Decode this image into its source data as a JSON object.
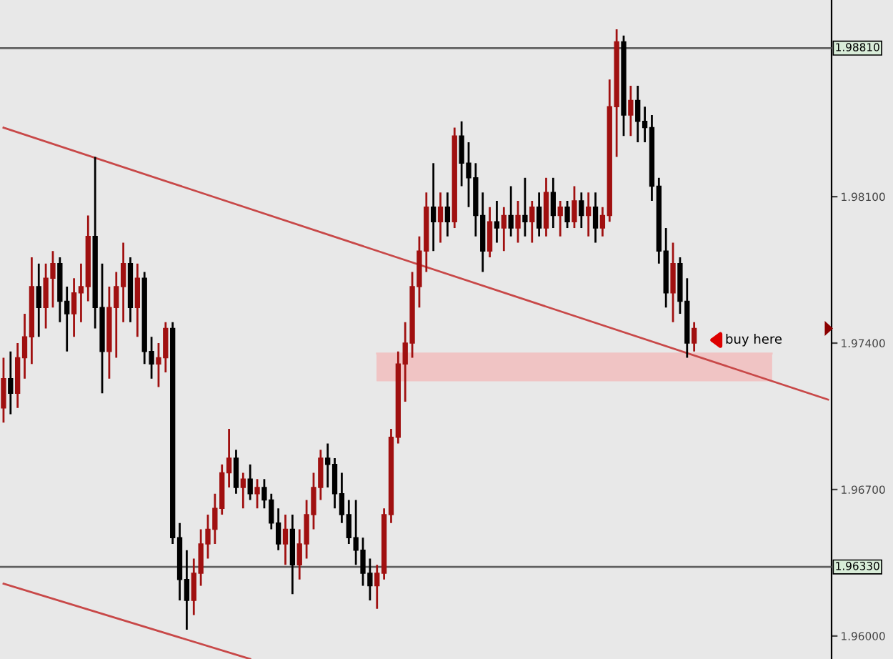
{
  "chart_data": {
    "type": "candlestick",
    "categories": [
      null,
      null,
      null,
      null,
      null,
      null,
      null,
      null,
      null,
      null,
      null,
      null,
      null,
      null,
      null,
      null,
      null,
      null,
      null,
      null,
      null,
      null,
      null,
      null,
      null,
      null,
      null,
      null,
      null,
      null,
      null,
      null,
      null,
      null,
      null,
      null,
      null,
      null,
      null,
      null,
      null,
      null,
      null,
      null,
      null,
      null,
      null,
      null,
      null,
      null,
      null,
      null,
      null,
      null,
      null,
      null,
      null,
      null,
      null,
      null,
      null,
      null,
      null,
      null,
      null,
      null,
      null,
      null,
      null,
      null,
      null,
      null,
      null,
      null,
      null,
      null,
      null,
      null,
      null,
      null,
      null,
      null,
      null,
      null,
      null,
      null,
      null,
      null,
      null,
      null,
      null,
      null,
      null,
      null,
      null,
      null,
      null,
      null,
      null,
      null,
      null,
      null,
      null,
      null,
      null,
      null,
      null,
      null,
      null,
      null,
      null,
      null,
      null,
      null,
      null,
      null,
      null,
      null
    ],
    "ohlc": [
      [
        1.9709,
        1.9733,
        1.9702,
        1.9723
      ],
      [
        1.9723,
        1.9736,
        1.9706,
        1.9716
      ],
      [
        1.9716,
        1.974,
        1.9709,
        1.9733
      ],
      [
        1.9733,
        1.9754,
        1.9723,
        1.9743
      ],
      [
        1.9743,
        1.9781,
        1.973,
        1.9767
      ],
      [
        1.9767,
        1.9778,
        1.9743,
        1.9757
      ],
      [
        1.9757,
        1.9778,
        1.9747,
        1.9771
      ],
      [
        1.9771,
        1.9784,
        1.9757,
        1.9778
      ],
      [
        1.9778,
        1.9781,
        1.975,
        1.976
      ],
      [
        1.976,
        1.9767,
        1.9736,
        1.9754
      ],
      [
        1.9754,
        1.9771,
        1.9743,
        1.9764
      ],
      [
        1.9764,
        1.9778,
        1.975,
        1.9767
      ],
      [
        1.9767,
        1.9801,
        1.976,
        1.9791
      ],
      [
        1.9791,
        1.9829,
        1.9747,
        1.9757
      ],
      [
        1.9757,
        1.9778,
        1.9716,
        1.9736
      ],
      [
        1.9736,
        1.9767,
        1.9723,
        1.9757
      ],
      [
        1.9757,
        1.9774,
        1.9733,
        1.9767
      ],
      [
        1.9767,
        1.9788,
        1.975,
        1.9778
      ],
      [
        1.9778,
        1.9781,
        1.975,
        1.9757
      ],
      [
        1.9757,
        1.9778,
        1.9743,
        1.9771
      ],
      [
        1.9771,
        1.9774,
        1.973,
        1.9736
      ],
      [
        1.9736,
        1.9743,
        1.9723,
        1.973
      ],
      [
        1.973,
        1.974,
        1.9719,
        1.9733
      ],
      [
        1.9733,
        1.975,
        1.9726,
        1.9747
      ],
      [
        1.9747,
        1.975,
        1.9644,
        1.9647
      ],
      [
        1.9647,
        1.9654,
        1.9617,
        1.9627
      ],
      [
        1.9627,
        1.9641,
        1.9603,
        1.9617
      ],
      [
        1.9617,
        1.9637,
        1.961,
        1.963
      ],
      [
        1.963,
        1.9651,
        1.9624,
        1.9644
      ],
      [
        1.9644,
        1.9658,
        1.9637,
        1.9651
      ],
      [
        1.9651,
        1.9668,
        1.9644,
        1.9661
      ],
      [
        1.9661,
        1.9682,
        1.9658,
        1.9678
      ],
      [
        1.9678,
        1.9699,
        1.9671,
        1.9685
      ],
      [
        1.9685,
        1.9689,
        1.9668,
        1.9671
      ],
      [
        1.9671,
        1.9678,
        1.9661,
        1.9675
      ],
      [
        1.9675,
        1.9682,
        1.9665,
        1.9668
      ],
      [
        1.9668,
        1.9675,
        1.9661,
        1.9671
      ],
      [
        1.9671,
        1.9675,
        1.9661,
        1.9665
      ],
      [
        1.9665,
        1.9668,
        1.9651,
        1.9654
      ],
      [
        1.9654,
        1.9661,
        1.9641,
        1.9644
      ],
      [
        1.9644,
        1.9658,
        1.9634,
        1.9651
      ],
      [
        1.9651,
        1.9658,
        1.962,
        1.9634
      ],
      [
        1.9634,
        1.9651,
        1.9627,
        1.9644
      ],
      [
        1.9644,
        1.9665,
        1.9637,
        1.9658
      ],
      [
        1.9658,
        1.9678,
        1.9651,
        1.9671
      ],
      [
        1.9671,
        1.9689,
        1.9665,
        1.9685
      ],
      [
        1.9685,
        1.9692,
        1.9671,
        1.9682
      ],
      [
        1.9682,
        1.9685,
        1.9661,
        1.9668
      ],
      [
        1.9668,
        1.9678,
        1.9654,
        1.9658
      ],
      [
        1.9658,
        1.9665,
        1.9644,
        1.9647
      ],
      [
        1.9647,
        1.9665,
        1.9634,
        1.9641
      ],
      [
        1.9641,
        1.9647,
        1.9624,
        1.963
      ],
      [
        1.963,
        1.9637,
        1.9617,
        1.9624
      ],
      [
        1.9624,
        1.9634,
        1.9613,
        1.963
      ],
      [
        1.963,
        1.9661,
        1.9627,
        1.9658
      ],
      [
        1.9658,
        1.9699,
        1.9654,
        1.9695
      ],
      [
        1.9695,
        1.9736,
        1.9692,
        1.973
      ],
      [
        1.973,
        1.975,
        1.9712,
        1.974
      ],
      [
        1.974,
        1.9774,
        1.9733,
        1.9767
      ],
      [
        1.9767,
        1.9791,
        1.9757,
        1.9784
      ],
      [
        1.9784,
        1.9812,
        1.9774,
        1.9805
      ],
      [
        1.9805,
        1.9826,
        1.9784,
        1.9798
      ],
      [
        1.9798,
        1.9812,
        1.9788,
        1.9805
      ],
      [
        1.9805,
        1.9812,
        1.9791,
        1.9798
      ],
      [
        1.9798,
        1.9843,
        1.9795,
        1.9839
      ],
      [
        1.9839,
        1.9846,
        1.9815,
        1.9826
      ],
      [
        1.9826,
        1.9836,
        1.9805,
        1.9819
      ],
      [
        1.9819,
        1.9826,
        1.9791,
        1.9801
      ],
      [
        1.9801,
        1.9812,
        1.9774,
        1.9784
      ],
      [
        1.9784,
        1.9805,
        1.9781,
        1.9798
      ],
      [
        1.9798,
        1.9808,
        1.9788,
        1.9795
      ],
      [
        1.9795,
        1.9805,
        1.9784,
        1.9801
      ],
      [
        1.9801,
        1.9815,
        1.9791,
        1.9795
      ],
      [
        1.9795,
        1.9808,
        1.9788,
        1.9801
      ],
      [
        1.9801,
        1.9819,
        1.9791,
        1.9798
      ],
      [
        1.9798,
        1.9808,
        1.9788,
        1.9805
      ],
      [
        1.9805,
        1.9812,
        1.9791,
        1.9795
      ],
      [
        1.9795,
        1.9819,
        1.9791,
        1.9812
      ],
      [
        1.9812,
        1.9819,
        1.9795,
        1.9801
      ],
      [
        1.9801,
        1.9808,
        1.9791,
        1.9805
      ],
      [
        1.9805,
        1.9808,
        1.9795,
        1.9798
      ],
      [
        1.9798,
        1.9815,
        1.9795,
        1.9808
      ],
      [
        1.9808,
        1.9812,
        1.9795,
        1.9801
      ],
      [
        1.9801,
        1.9812,
        1.9791,
        1.9805
      ],
      [
        1.9805,
        1.9812,
        1.9788,
        1.9795
      ],
      [
        1.9795,
        1.9805,
        1.9791,
        1.9801
      ],
      [
        1.9801,
        1.9866,
        1.9798,
        1.9853
      ],
      [
        1.9853,
        1.989,
        1.9829,
        1.9884
      ],
      [
        1.9884,
        1.9887,
        1.9839,
        1.9849
      ],
      [
        1.9849,
        1.9863,
        1.9839,
        1.9856
      ],
      [
        1.9856,
        1.9863,
        1.9836,
        1.9846
      ],
      [
        1.9846,
        1.9853,
        1.9836,
        1.9843
      ],
      [
        1.9843,
        1.9849,
        1.9808,
        1.9815
      ],
      [
        1.9815,
        1.9819,
        1.9778,
        1.9784
      ],
      [
        1.9784,
        1.9795,
        1.9757,
        1.9764
      ],
      [
        1.9764,
        1.9788,
        1.975,
        1.9778
      ],
      [
        1.9778,
        1.9781,
        1.9754,
        1.976
      ],
      [
        1.976,
        1.9771,
        1.9733,
        1.974
      ],
      [
        1.974,
        1.975,
        1.9736,
        1.9747
      ],
      null,
      null,
      null,
      null,
      null,
      null,
      null,
      null,
      null,
      null,
      null,
      null,
      null,
      null,
      null,
      null,
      null,
      null,
      null
    ],
    "colors": [
      "#a01010",
      "#000000",
      "#a01010",
      "#a01010",
      "#a01010",
      "#000000",
      "#a01010",
      "#a01010",
      "#000000",
      "#000000",
      "#a01010",
      "#a01010",
      "#a01010",
      "#000000",
      "#000000",
      "#a01010",
      "#a01010",
      "#a01010",
      "#000000",
      "#a01010",
      "#000000",
      "#000000",
      "#a01010",
      "#a01010",
      "#000000",
      "#000000",
      "#000000",
      "#a01010",
      "#a01010",
      "#a01010",
      "#a01010",
      "#a01010",
      "#a01010",
      "#000000",
      "#a01010",
      "#000000",
      "#a01010",
      "#000000",
      "#000000",
      "#000000",
      "#a01010",
      "#000000",
      "#a01010",
      "#a01010",
      "#a01010",
      "#a01010",
      "#000000",
      "#000000",
      "#000000",
      "#000000",
      "#000000",
      "#000000",
      "#000000",
      "#a01010",
      "#a01010",
      "#a01010",
      "#a01010",
      "#a01010",
      "#a01010",
      "#a01010",
      "#a01010",
      "#000000",
      "#a01010",
      "#000000",
      "#a01010",
      "#000000",
      "#000000",
      "#000000",
      "#000000",
      "#a01010",
      "#000000",
      "#a01010",
      "#000000",
      "#a01010",
      "#000000",
      "#a01010",
      "#000000",
      "#a01010",
      "#000000",
      "#a01010",
      "#000000",
      "#a01010",
      "#000000",
      "#a01010",
      "#000000",
      "#a01010",
      "#a01010",
      "#a01010",
      "#000000",
      "#a01010",
      "#000000",
      "#000000",
      "#000000",
      "#000000",
      "#000000",
      "#a01010",
      "#000000",
      "#000000",
      "#a01010",
      null,
      null,
      null,
      null,
      null,
      null,
      null,
      null,
      null,
      null,
      null,
      null,
      null,
      null,
      null,
      null,
      null,
      null,
      null
    ],
    "ylim": [
      1.9589,
      1.9904
    ],
    "yticks": [
      {
        "value": 1.981,
        "label": "1.98100"
      },
      {
        "value": 1.974,
        "label": "1.97400"
      },
      {
        "value": 1.967,
        "label": "1.96700"
      },
      {
        "value": 1.96,
        "label": "1.96000"
      }
    ],
    "tick_labels": "y",
    "series": [
      {
        "type": "line",
        "color": "#c84848",
        "values": [
          1.9843,
          null,
          null,
          null,
          null,
          null,
          null,
          null,
          null,
          null,
          null,
          null,
          null,
          null,
          null,
          null,
          null,
          null,
          null,
          null,
          null,
          null,
          null,
          null,
          null,
          null,
          null,
          null,
          null,
          null,
          null,
          null,
          null,
          null,
          null,
          null,
          null,
          null,
          null,
          null,
          null,
          null,
          null,
          null,
          null,
          null,
          null,
          null,
          null,
          null,
          null,
          null,
          null,
          null,
          null,
          null,
          null,
          null,
          null,
          null,
          null,
          null,
          null,
          null,
          null,
          null,
          null,
          null,
          null,
          null,
          null,
          null,
          null,
          null,
          null,
          null,
          null,
          null,
          null,
          null,
          null,
          null,
          null,
          null,
          null,
          null,
          null,
          null,
          null,
          null,
          null,
          null,
          null,
          null,
          null,
          null,
          null,
          null,
          null,
          null,
          null,
          null,
          null,
          null,
          null,
          null,
          null,
          null,
          null,
          null,
          null,
          null,
          null,
          null,
          null,
          null,
          null,
          1.9713
        ]
      },
      {
        "type": "line",
        "color": "#c84848",
        "values": [
          1.9625,
          null,
          null,
          null,
          null,
          null,
          null,
          null,
          null,
          null,
          null,
          null,
          null,
          null,
          null,
          null,
          null,
          null,
          null,
          null,
          null,
          null,
          null,
          null,
          null,
          null,
          null,
          null,
          null,
          null,
          null,
          null,
          null,
          null,
          null,
          1.9589,
          null,
          null,
          null,
          null,
          null,
          null,
          null,
          null,
          null,
          null,
          null,
          null,
          null,
          null,
          null,
          null,
          null,
          null,
          null,
          null,
          null,
          null,
          null,
          null,
          null,
          null,
          null,
          null,
          null,
          null,
          null,
          null,
          null,
          null,
          null,
          null,
          null,
          null,
          null,
          null,
          null,
          null,
          null,
          null,
          null,
          null,
          null,
          null,
          null,
          null,
          null,
          null,
          null,
          null,
          null,
          null,
          null,
          null,
          null,
          null,
          null,
          null,
          null,
          null,
          null,
          null,
          null,
          null,
          null,
          null,
          null,
          null,
          null,
          null,
          null,
          null,
          null,
          null,
          null,
          null,
          null,
          null
        ]
      },
      {
        "type": "line",
        "color": "#f0c4c4",
        "upper": [
          null,
          null,
          null,
          null,
          null,
          null,
          null,
          null,
          null,
          null,
          null,
          null,
          null,
          null,
          null,
          null,
          null,
          null,
          null,
          null,
          null,
          null,
          null,
          null,
          null,
          null,
          null,
          null,
          null,
          null,
          null,
          null,
          null,
          null,
          null,
          null,
          null,
          null,
          null,
          null,
          null,
          null,
          null,
          null,
          null,
          null,
          null,
          null,
          null,
          null,
          null,
          null,
          null,
          1.9735,
          null,
          null,
          null,
          null,
          null,
          null,
          null,
          null,
          null,
          null,
          null,
          null,
          null,
          null,
          null,
          null,
          null,
          null,
          null,
          null,
          null,
          null,
          null,
          null,
          null,
          null,
          null,
          null,
          null,
          null,
          null,
          null,
          null,
          null,
          null,
          null,
          null,
          null,
          null,
          null,
          null,
          null,
          null,
          null,
          null,
          null,
          null,
          null,
          null,
          null,
          null,
          null,
          null,
          null,
          null,
          1.9735,
          null,
          null,
          null,
          null,
          null,
          null,
          null,
          null
        ],
        "values": [
          null,
          null,
          null,
          null,
          null,
          null,
          null,
          null,
          null,
          null,
          null,
          null,
          null,
          null,
          null,
          null,
          null,
          null,
          null,
          null,
          null,
          null,
          null,
          null,
          null,
          null,
          null,
          null,
          null,
          null,
          null,
          null,
          null,
          null,
          null,
          null,
          null,
          null,
          null,
          null,
          null,
          null,
          null,
          null,
          null,
          null,
          null,
          null,
          null,
          null,
          null,
          null,
          null,
          1.9735,
          null,
          null,
          null,
          null,
          null,
          null,
          null,
          null,
          null,
          null,
          null,
          null,
          null,
          null,
          null,
          null,
          null,
          null,
          null,
          null,
          null,
          null,
          null,
          null,
          null,
          null,
          null,
          null,
          null,
          null,
          null,
          null,
          null,
          null,
          null,
          null,
          null,
          null,
          null,
          null,
          null,
          null,
          null,
          null,
          null,
          null,
          null,
          null,
          null,
          null,
          null,
          null,
          null,
          null,
          null,
          1.9735,
          null,
          null,
          null,
          null,
          null,
          null,
          null,
          null
        ],
        "lower": [
          null,
          null,
          null,
          null,
          null,
          null,
          null,
          null,
          null,
          null,
          null,
          null,
          null,
          null,
          null,
          null,
          null,
          null,
          null,
          null,
          null,
          null,
          null,
          null,
          null,
          null,
          null,
          null,
          null,
          null,
          null,
          null,
          null,
          null,
          null,
          null,
          null,
          null,
          null,
          null,
          null,
          null,
          null,
          null,
          null,
          null,
          null,
          null,
          null,
          null,
          null,
          null,
          null,
          1.9722,
          null,
          null,
          null,
          null,
          null,
          null,
          null,
          null,
          null,
          null,
          null,
          null,
          null,
          null,
          null,
          null,
          null,
          null,
          null,
          null,
          null,
          null,
          null,
          null,
          null,
          null,
          null,
          null,
          null,
          null,
          null,
          null,
          null,
          null,
          null,
          null,
          null,
          null,
          null,
          null,
          null,
          null,
          null,
          null,
          null,
          null,
          null,
          null,
          null,
          null,
          null,
          null,
          null,
          null,
          null,
          1.9722,
          null,
          null,
          null,
          null,
          null,
          null,
          null,
          null
        ]
      }
    ],
    "ref_lines": [
      {
        "axis": "y",
        "value": 1.9881,
        "label": "1.98810",
        "color": "#606060"
      },
      {
        "axis": "y",
        "value": 1.9633,
        "label": "1.96330",
        "color": "#606060"
      }
    ],
    "annotations": [
      "buy here"
    ]
  }
}
